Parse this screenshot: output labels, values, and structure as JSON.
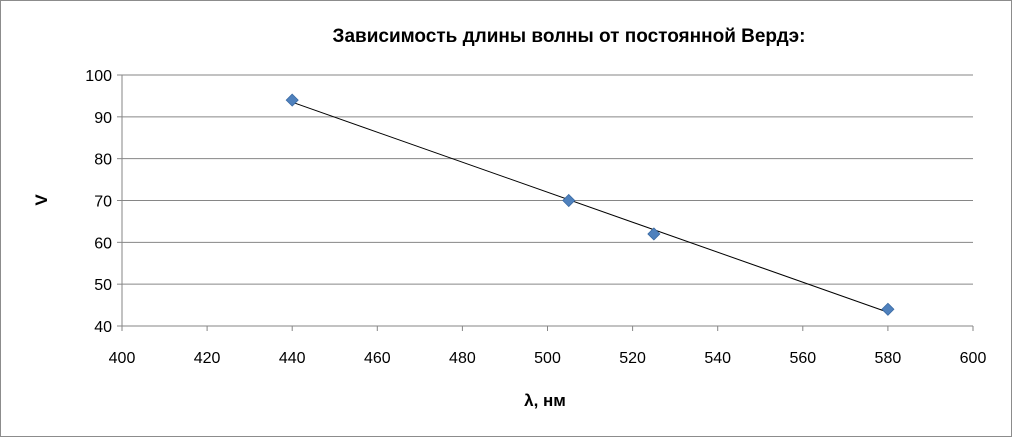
{
  "chart_data": {
    "type": "scatter",
    "title": "Зависимость длины волны от постоянной Вердэ:",
    "xlabel": "λ, нм",
    "ylabel": "V",
    "xlim": [
      400,
      600
    ],
    "ylim": [
      40,
      100
    ],
    "xticks": [
      400,
      420,
      440,
      460,
      480,
      500,
      520,
      540,
      560,
      580,
      600
    ],
    "yticks": [
      40,
      50,
      60,
      70,
      80,
      90,
      100
    ],
    "grid": "horizontal",
    "marker": "diamond",
    "marker_color": "#4f81bd",
    "trendline": {
      "type": "linear",
      "color": "#000000"
    },
    "points": [
      {
        "x": 440,
        "y": 94
      },
      {
        "x": 505,
        "y": 70
      },
      {
        "x": 525,
        "y": 62
      },
      {
        "x": 580,
        "y": 44
      }
    ]
  }
}
